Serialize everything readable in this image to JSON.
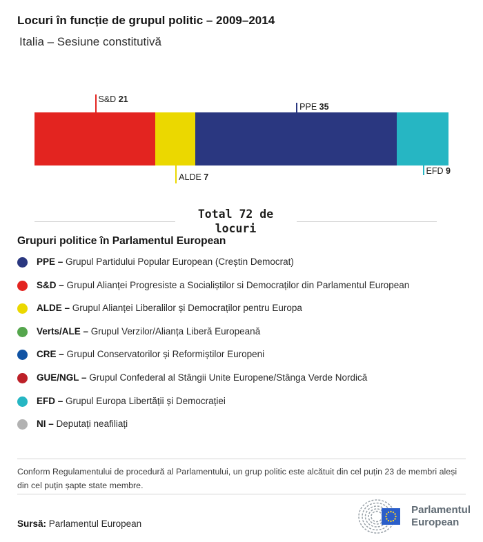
{
  "header": {
    "title": "Locuri în funcție de grupul politic – 2009–2014",
    "subtitle": "Italia – Sesiune constitutivă"
  },
  "chart_data": {
    "type": "bar",
    "orientation": "horizontal-stacked",
    "total": 72,
    "total_label": "Total 72 de locuri",
    "segments": [
      {
        "name": "S&D",
        "value": 21,
        "color": "#e32420",
        "label_side": "above",
        "tick_length": "long"
      },
      {
        "name": "ALDE",
        "value": 7,
        "color": "#ebd800",
        "label_side": "below",
        "tick_length": "long"
      },
      {
        "name": "PPE",
        "value": 35,
        "color": "#2a3780",
        "label_side": "above",
        "tick_length": "short"
      },
      {
        "name": "EFD",
        "value": 9,
        "color": "#26b6c3",
        "label_side": "below",
        "tick_length": "short"
      }
    ]
  },
  "legend": {
    "heading": "Grupuri politice în Parlamentul European",
    "items": [
      {
        "abbr": "PPE –",
        "desc": "Grupul Partidului Popular European (Creștin Democrat)",
        "color": "#2a3780"
      },
      {
        "abbr": "S&D –",
        "desc": "Grupul Alianței Progresiste a Socialiștilor si Democraților din Parlamentul European",
        "color": "#e32420"
      },
      {
        "abbr": "ALDE –",
        "desc": "Grupul Alianței Liberalilor și Democraților pentru Europa",
        "color": "#ebd800"
      },
      {
        "abbr": "Verts/ALE –",
        "desc": "Grupul Verzilor/Alianța Liberă Europeană",
        "color": "#55a64d"
      },
      {
        "abbr": "CRE –",
        "desc": "Grupul Conservatorilor și Reformiștilor Europeni",
        "color": "#1053a4"
      },
      {
        "abbr": "GUE/NGL –",
        "desc": "Grupul Confederal al Stângii Unite Europene/Stânga Verde Nordică",
        "color": "#bd2028"
      },
      {
        "abbr": "EFD –",
        "desc": "Grupul Europa Libertății și Democrației",
        "color": "#26b6c3"
      },
      {
        "abbr": "NI –",
        "desc": "Deputați neafiliați",
        "color": "#b2b2b2"
      }
    ]
  },
  "footnote": "Conform Regulamentului de procedură al Parlamentului, un grup politic este alcătuit din cel puțin 23 de membri aleși din cel puțin șapte state membre.",
  "source": {
    "label": "Sursă:",
    "value": "Parlamentul European"
  },
  "logo": {
    "line1": "Parlamentul",
    "line2": "European"
  },
  "colors": {
    "ppe": "#2a3780",
    "sd": "#e32420",
    "alde": "#ebd800",
    "verts_ale": "#55a64d",
    "cre": "#1053a4",
    "gue_ngl": "#bd2028",
    "efd": "#26b6c3",
    "ni": "#b2b2b2",
    "divider": "#d4d4d4",
    "logo_gray": "#5f6a73",
    "eu_flag_blue": "#2b5ec9",
    "eu_star_yellow": "#f8d12c"
  }
}
